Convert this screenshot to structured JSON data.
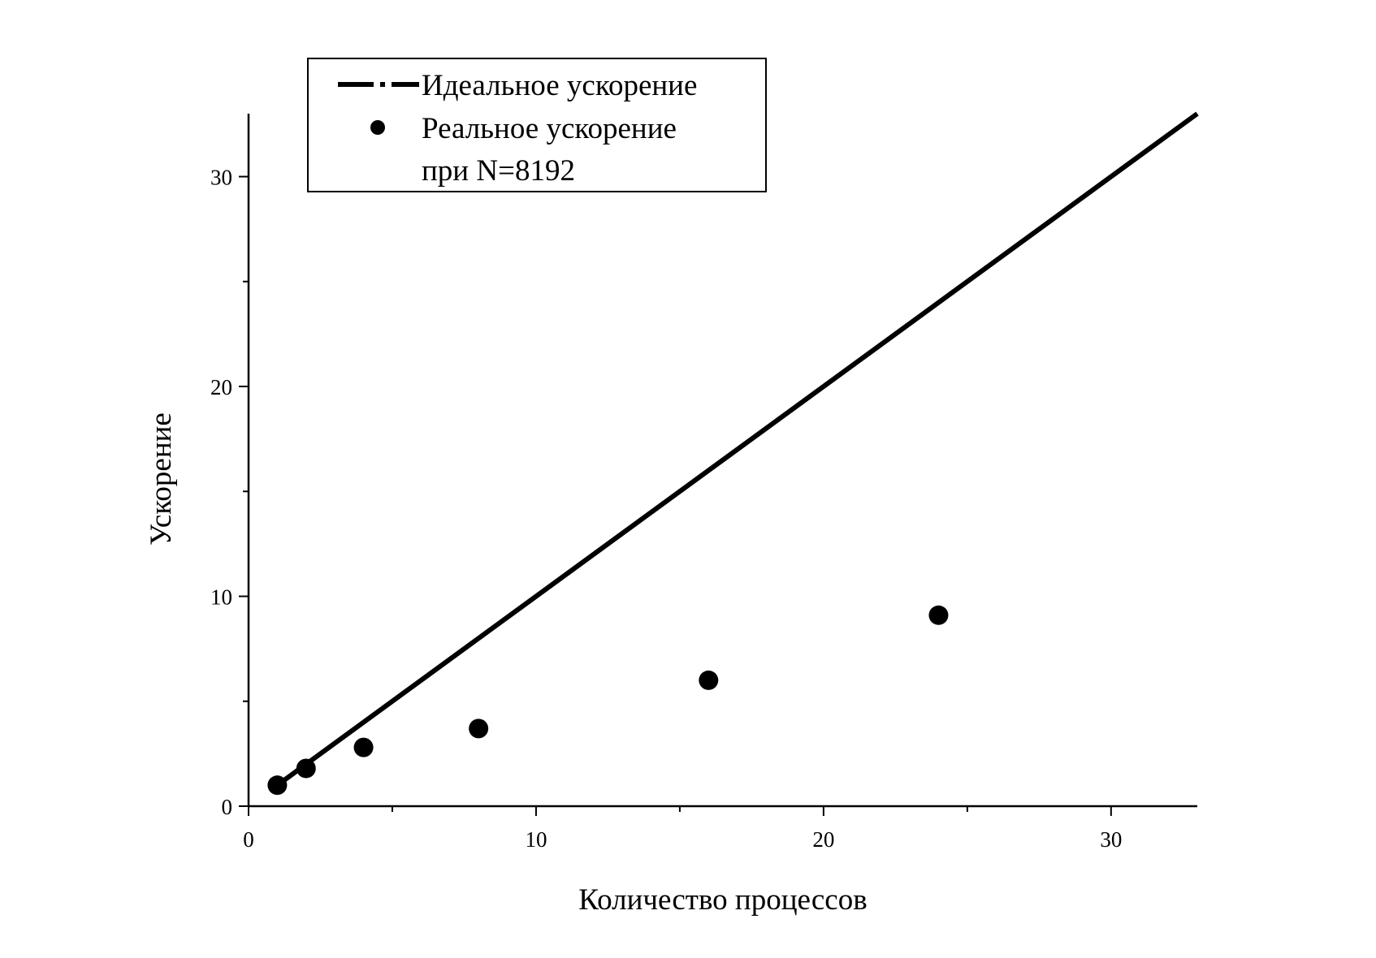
{
  "chart_data": {
    "type": "scatter",
    "xlabel": "Количество процессов",
    "ylabel": "Ускорение",
    "xlim": [
      0,
      33
    ],
    "ylim": [
      0,
      33
    ],
    "xticks": [
      0,
      10,
      20,
      30
    ],
    "yticks": [
      0,
      10,
      20,
      30
    ],
    "xticks_minor": [
      5,
      15,
      25
    ],
    "yticks_minor": [
      5,
      15,
      25
    ],
    "grid": false,
    "legend_position": "top-left",
    "series": [
      {
        "name": "Идеальное ускорение",
        "kind": "line",
        "x": [
          1,
          33
        ],
        "y": [
          1,
          33
        ],
        "color": "#000000"
      },
      {
        "name": "Реальное ускорение при N=8192",
        "kind": "scatter",
        "x": [
          1,
          2,
          4,
          8,
          16,
          24
        ],
        "y": [
          1.0,
          1.8,
          2.8,
          3.7,
          6.0,
          9.1
        ],
        "color": "#000000"
      }
    ]
  },
  "legend": {
    "ideal_label": "Идеальное ускорение",
    "real_label_line1": "Реальное ускорение",
    "real_label_line2": "при N=8192"
  },
  "tick_labels": {
    "x": [
      "0",
      "10",
      "20",
      "30"
    ],
    "y": [
      "0",
      "10",
      "20",
      "30"
    ]
  }
}
